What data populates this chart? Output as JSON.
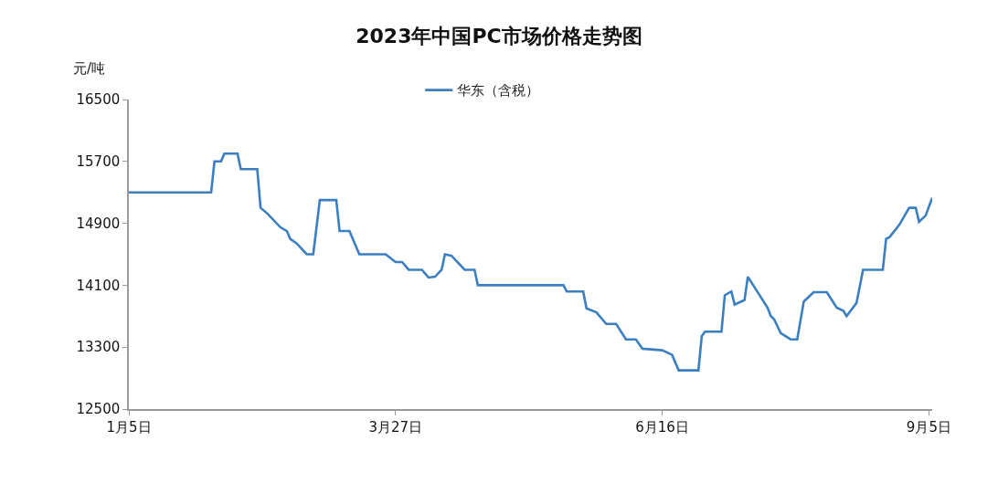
{
  "chart_data": {
    "type": "line",
    "title": "2023年中国PC市场价格走势图",
    "ylabel": "元/吨",
    "x": [
      "--01-05",
      "--01-30",
      "--01-31",
      "--02-02",
      "--02-03",
      "--02-07",
      "--02-08",
      "--02-13",
      "--02-14",
      "--02-16",
      "--02-20",
      "--02-22",
      "--02-23",
      "--02-25",
      "--02-28",
      "--03-02",
      "--03-04",
      "--03-09",
      "--03-10",
      "--03-13",
      "--03-16",
      "--03-24",
      "--03-27",
      "--03-29",
      "--03-31",
      "--04-04",
      "--04-06",
      "--04-08",
      "--04-10",
      "--04-11",
      "--04-13",
      "--04-17",
      "--04-20",
      "--04-21",
      "--05-17",
      "--05-18",
      "--05-23",
      "--05-24",
      "--05-27",
      "--05-30",
      "--06-02",
      "--06-05",
      "--06-08",
      "--06-10",
      "--06-16",
      "--06-19",
      "--06-21",
      "--06-27",
      "--06-28",
      "--06-29",
      "--07-04",
      "--07-05",
      "--07-07",
      "--07-08",
      "--07-11",
      "--07-12",
      "--07-18",
      "--07-19",
      "--07-20",
      "--07-22",
      "--07-25",
      "--07-27",
      "--07-29",
      "--08-01",
      "--08-05",
      "--08-08",
      "--08-10",
      "--08-11",
      "--08-14",
      "--08-16",
      "--08-22",
      "--08-23",
      "--08-24",
      "--08-27",
      "--08-30",
      "--09-01",
      "--09-02",
      "--09-04",
      "--09-06"
    ],
    "series": [
      {
        "name": "华东（含税）",
        "color": "#3c7fc0",
        "values": [
          15300,
          15300,
          15700,
          15700,
          15800,
          15800,
          15600,
          15600,
          15100,
          15030,
          14850,
          14800,
          14700,
          14640,
          14500,
          14500,
          15200,
          15200,
          14800,
          14800,
          14500,
          14500,
          14400,
          14400,
          14300,
          14300,
          14200,
          14210,
          14300,
          14500,
          14480,
          14300,
          14300,
          14100,
          14100,
          14020,
          14020,
          13800,
          13750,
          13600,
          13600,
          13400,
          13400,
          13280,
          13260,
          13200,
          13000,
          13000,
          13440,
          13500,
          13500,
          13970,
          14020,
          13850,
          13910,
          14210,
          13810,
          13700,
          13660,
          13480,
          13400,
          13400,
          13890,
          14010,
          14010,
          13810,
          13770,
          13700,
          13870,
          14300,
          14300,
          14700,
          14720,
          14880,
          15100,
          15100,
          14920,
          15000,
          15230
        ]
      }
    ],
    "xlim": [
      "--01-05",
      "--09-06"
    ],
    "xticks": [
      {
        "value": "--01-05",
        "label": "1月5日"
      },
      {
        "value": "--03-27",
        "label": "3月27日"
      },
      {
        "value": "--06-16",
        "label": "6月16日"
      },
      {
        "value": "--09-05",
        "label": "9月5日"
      }
    ],
    "ylim": [
      12500,
      16500
    ],
    "yticks": [
      12500,
      13300,
      14100,
      14900,
      15700,
      16500
    ],
    "legend": "top",
    "line_style": "solid"
  }
}
